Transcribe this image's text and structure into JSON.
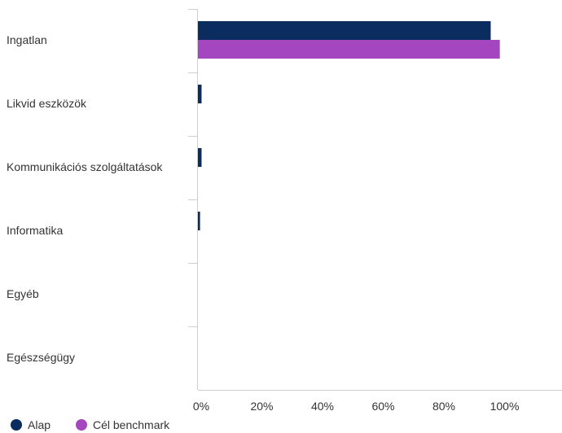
{
  "chart_data": {
    "type": "bar",
    "orientation": "horizontal",
    "categories": [
      "Ingatlan",
      "Likvid eszközök",
      "Kommunikációs szolgáltatások",
      "Informatika",
      "Egyéb",
      "Egészségügy"
    ],
    "series": [
      {
        "name": "Alap",
        "color": "#0a2c5e",
        "values": [
          96.5,
          1.2,
          1.2,
          0.7,
          0,
          0
        ]
      },
      {
        "name": "Cél benchmark",
        "color": "#a446c0",
        "values": [
          99.5,
          0,
          0,
          0,
          0,
          0
        ]
      }
    ],
    "xlim": [
      0,
      120
    ],
    "xticks": [
      0,
      20,
      40,
      60,
      80,
      100
    ],
    "xtick_labels": [
      "0%",
      "20%",
      "40%",
      "60%",
      "80%",
      "100%"
    ],
    "grid": false,
    "legend_position": "bottom-left"
  }
}
